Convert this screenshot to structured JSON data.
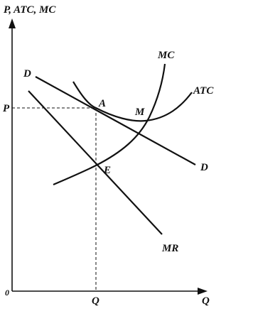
{
  "y_axis_label": "P, ATC, MC",
  "x_axis_label": "Q",
  "origin_label": "0",
  "price_label": "P",
  "quantity_label": "Q",
  "curves": {
    "demand_left": "D",
    "demand_right": "D",
    "mc": "MC",
    "atc": "ATC",
    "mr": "MR"
  },
  "points": {
    "a": "A",
    "m": "M",
    "e": "E"
  }
}
